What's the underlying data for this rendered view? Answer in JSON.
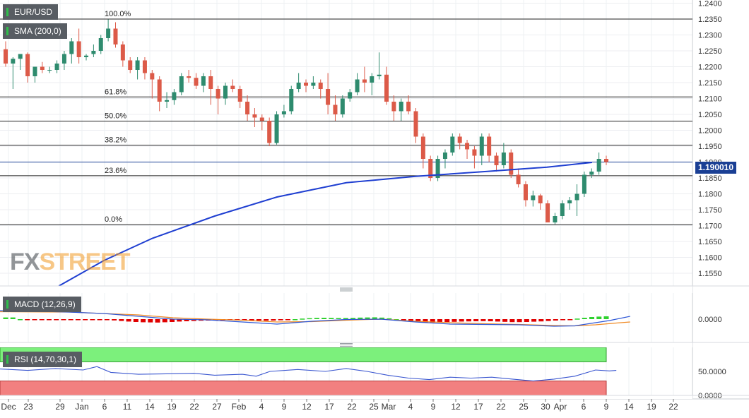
{
  "header": {
    "symbol": "EUR/USD",
    "indicator": "SMA (200,0)",
    "macd_label": "MACD (12,26,9)",
    "rsi_label": "RSI (14,70,30,1)",
    "price_badge": "1.190010"
  },
  "logo": {
    "fx": "FX",
    "street": "STREET"
  },
  "colors": {
    "up": "#2e8b6e",
    "down": "#dc5a48",
    "sma": "#1f3fd1",
    "tag": "#1a3f94",
    "macd": "#2f58d6",
    "signal": "#f08a24",
    "hist_up": "#2ed12e",
    "hist_down": "#e00000",
    "rsi_over": "#7cf07c",
    "rsi_under": "#f28080",
    "rsi_line": "#3b57d0"
  },
  "chart_data": {
    "type": "candlestick",
    "symbol": "EUR/USD",
    "ylim": [
      1.151,
      1.241
    ],
    "yticks": [
      "1.2400",
      "1.2350",
      "1.2300",
      "1.2250",
      "1.2200",
      "1.2150",
      "1.2100",
      "1.2050",
      "1.2000",
      "1.1950",
      "1.1900",
      "1.1850",
      "1.1800",
      "1.1750",
      "1.1700",
      "1.1650",
      "1.1600",
      "1.1550"
    ],
    "xticks": [
      "Dec",
      "23",
      "29",
      "Jan",
      "6",
      "11",
      "14",
      "19",
      "22",
      "27",
      "Feb",
      "4",
      "9",
      "12",
      "17",
      "22",
      "25",
      "Mar",
      "4",
      "9",
      "12",
      "17",
      "22",
      "25",
      "30",
      "Apr",
      "6",
      "9",
      "14",
      "19",
      "22"
    ],
    "last_price": "1.190010",
    "fibonacci": [
      {
        "label": "100.0%",
        "value": 1.235
      },
      {
        "label": "61.8%",
        "value": 1.2105
      },
      {
        "label": "50.0%",
        "value": 1.2029
      },
      {
        "label": "38.2%",
        "value": 1.1953
      },
      {
        "label": "23.6%",
        "value": 1.1857
      },
      {
        "label": "0.0%",
        "value": 1.1703
      }
    ],
    "candles": [
      [
        1.2255,
        1.228,
        1.22,
        1.221
      ],
      [
        1.221,
        1.223,
        1.213,
        1.2225
      ],
      [
        1.2225,
        1.224,
        1.219,
        1.224
      ],
      [
        1.224,
        1.2245,
        1.215,
        1.217
      ],
      [
        1.217,
        1.22,
        1.215,
        1.22
      ],
      [
        1.22,
        1.2215,
        1.218,
        1.219
      ],
      [
        1.219,
        1.22,
        1.218,
        1.219
      ],
      [
        1.219,
        1.222,
        1.218,
        1.221
      ],
      [
        1.221,
        1.225,
        1.219,
        1.224
      ],
      [
        1.224,
        1.229,
        1.221,
        1.228
      ],
      [
        1.228,
        1.232,
        1.221,
        1.223
      ],
      [
        1.223,
        1.224,
        1.222,
        1.2235
      ],
      [
        1.224,
        1.227,
        1.223,
        1.225
      ],
      [
        1.225,
        1.23,
        1.224,
        1.229
      ],
      [
        1.229,
        1.2349,
        1.228,
        1.232
      ],
      [
        1.232,
        1.234,
        1.226,
        1.227
      ],
      [
        1.227,
        1.228,
        1.22,
        1.222
      ],
      [
        1.222,
        1.223,
        1.218,
        1.219
      ],
      [
        1.219,
        1.223,
        1.216,
        1.222
      ],
      [
        1.222,
        1.223,
        1.216,
        1.218
      ],
      [
        1.218,
        1.219,
        1.21,
        1.216
      ],
      [
        1.216,
        1.217,
        1.206,
        1.209
      ],
      [
        1.209,
        1.212,
        1.207,
        1.2095
      ],
      [
        1.2095,
        1.213,
        1.208,
        1.212
      ],
      [
        1.212,
        1.218,
        1.211,
        1.217
      ],
      [
        1.217,
        1.219,
        1.215,
        1.2165
      ],
      [
        1.2165,
        1.218,
        1.213,
        1.214
      ],
      [
        1.214,
        1.218,
        1.212,
        1.217
      ],
      [
        1.217,
        1.219,
        1.208,
        1.213
      ],
      [
        1.213,
        1.214,
        1.205,
        1.21
      ],
      [
        1.21,
        1.215,
        1.208,
        1.214
      ],
      [
        1.214,
        1.216,
        1.212,
        1.213
      ],
      [
        1.213,
        1.214,
        1.207,
        1.209
      ],
      [
        1.209,
        1.211,
        1.203,
        1.205
      ],
      [
        1.205,
        1.207,
        1.201,
        1.204
      ],
      [
        1.204,
        1.205,
        1.2,
        1.203
      ],
      [
        1.203,
        1.204,
        1.195,
        1.196
      ],
      [
        1.196,
        1.206,
        1.1955,
        1.205
      ],
      [
        1.205,
        1.208,
        1.204,
        1.206
      ],
      [
        1.206,
        1.214,
        1.205,
        1.213
      ],
      [
        1.213,
        1.218,
        1.212,
        1.215
      ],
      [
        1.215,
        1.216,
        1.212,
        1.214
      ],
      [
        1.214,
        1.217,
        1.213,
        1.215
      ],
      [
        1.215,
        1.216,
        1.21,
        1.213
      ],
      [
        1.213,
        1.218,
        1.205,
        1.208
      ],
      [
        1.208,
        1.211,
        1.203,
        1.205
      ],
      [
        1.205,
        1.211,
        1.204,
        1.21
      ],
      [
        1.21,
        1.213,
        1.209,
        1.212
      ],
      [
        1.212,
        1.218,
        1.211,
        1.216
      ],
      [
        1.216,
        1.22,
        1.212,
        1.215
      ],
      [
        1.215,
        1.218,
        1.211,
        1.217
      ],
      [
        1.217,
        1.2245,
        1.216,
        1.2175
      ],
      [
        1.2175,
        1.22,
        1.208,
        1.209
      ],
      [
        1.209,
        1.211,
        1.203,
        1.206
      ],
      [
        1.206,
        1.21,
        1.203,
        1.209
      ],
      [
        1.209,
        1.211,
        1.205,
        1.206
      ],
      [
        1.206,
        1.207,
        1.196,
        1.198
      ],
      [
        1.198,
        1.199,
        1.188,
        1.191
      ],
      [
        1.191,
        1.192,
        1.184,
        1.185
      ],
      [
        1.185,
        1.192,
        1.184,
        1.191
      ],
      [
        1.191,
        1.194,
        1.188,
        1.193
      ],
      [
        1.193,
        1.199,
        1.192,
        1.198
      ],
      [
        1.198,
        1.199,
        1.194,
        1.196
      ],
      [
        1.196,
        1.197,
        1.191,
        1.194
      ],
      [
        1.194,
        1.195,
        1.188,
        1.192
      ],
      [
        1.192,
        1.199,
        1.189,
        1.198
      ],
      [
        1.198,
        1.199,
        1.19,
        1.192
      ],
      [
        1.192,
        1.193,
        1.187,
        1.189
      ],
      [
        1.189,
        1.196,
        1.188,
        1.193
      ],
      [
        1.193,
        1.194,
        1.185,
        1.186
      ],
      [
        1.186,
        1.188,
        1.182,
        1.183
      ],
      [
        1.183,
        1.184,
        1.176,
        1.178
      ],
      [
        1.178,
        1.181,
        1.176,
        1.1795
      ],
      [
        1.1795,
        1.18,
        1.175,
        1.177
      ],
      [
        1.177,
        1.178,
        1.171,
        1.171
      ],
      [
        1.171,
        1.174,
        1.1704,
        1.173
      ],
      [
        1.173,
        1.178,
        1.172,
        1.177
      ],
      [
        1.177,
        1.179,
        1.175,
        1.178
      ],
      [
        1.178,
        1.183,
        1.173,
        1.18
      ],
      [
        1.18,
        1.187,
        1.179,
        1.186
      ],
      [
        1.186,
        1.188,
        1.185,
        1.187
      ],
      [
        1.187,
        1.193,
        1.186,
        1.191
      ],
      [
        1.191,
        1.192,
        1.189,
        1.19
      ]
    ],
    "sma_200": [
      [
        0.085,
        1.151
      ],
      [
        0.15,
        1.159
      ],
      [
        0.22,
        1.166
      ],
      [
        0.31,
        1.173
      ],
      [
        0.4,
        1.179
      ],
      [
        0.5,
        1.1835
      ],
      [
        0.6,
        1.1855
      ],
      [
        0.7,
        1.187
      ],
      [
        0.79,
        1.1884
      ],
      [
        0.855,
        1.1899
      ]
    ],
    "macd": {
      "zero_label": "0.0000",
      "hist": [
        0.0012,
        0.0012,
        0.0,
        -0.0003,
        -0.0004,
        -0.0004,
        -0.0004,
        -0.0004,
        -0.0004,
        -0.0004,
        -0.0003,
        -0.0002,
        -0.0003,
        -0.0003,
        -0.0005,
        -0.0009,
        -0.0013,
        -0.0017,
        -0.002,
        -0.0022,
        -0.0023,
        -0.0024,
        -0.0022,
        -0.002,
        -0.0017,
        -0.0015,
        -0.0013,
        -0.0011,
        -0.001,
        -0.0009,
        -0.0008,
        -0.0007,
        -0.0007,
        -0.0007,
        -0.0009,
        -0.001,
        -0.0011,
        -0.001,
        -0.0008,
        -0.0005,
        0.0,
        0.0004,
        0.0007,
        0.0009,
        0.001,
        0.0009,
        0.0008,
        0.0008,
        0.0009,
        0.0011,
        0.0012,
        0.0013,
        0.0011,
        0.0006,
        0.0,
        -0.0006,
        -0.0012,
        -0.0018,
        -0.0022,
        -0.0024,
        -0.0023,
        -0.0021,
        -0.0019,
        -0.0017,
        -0.0016,
        -0.0015,
        -0.0014,
        -0.0015,
        -0.0017,
        -0.0019,
        -0.0021,
        -0.0021,
        -0.002,
        -0.0018,
        -0.0016,
        -0.0013,
        -0.001,
        -0.0006,
        -0.0002,
        0.0004,
        0.001,
        0.0015,
        0.0018,
        0.002
      ],
      "macd_line": [
        [
          0.0,
          0.012
        ],
        [
          0.04,
          0.0115
        ],
        [
          0.1,
          0.01
        ],
        [
          0.15,
          0.008
        ],
        [
          0.2,
          0.004
        ],
        [
          0.25,
          0.0
        ],
        [
          0.3,
          -0.001
        ],
        [
          0.35,
          -0.004
        ],
        [
          0.4,
          -0.007
        ],
        [
          0.45,
          -0.003
        ],
        [
          0.5,
          -0.0005
        ],
        [
          0.55,
          0.0
        ],
        [
          0.6,
          -0.004
        ],
        [
          0.65,
          -0.007
        ],
        [
          0.7,
          -0.0075
        ],
        [
          0.75,
          -0.008
        ],
        [
          0.8,
          -0.01
        ],
        [
          0.83,
          -0.0095
        ],
        [
          0.86,
          -0.005
        ],
        [
          0.88,
          -0.002
        ],
        [
          0.91,
          0.004
        ]
      ],
      "signal_line": [
        [
          0.0,
          0.0105
        ],
        [
          0.1,
          0.01
        ],
        [
          0.2,
          0.006
        ],
        [
          0.25,
          0.002
        ],
        [
          0.3,
          0.0
        ],
        [
          0.35,
          -0.0015
        ],
        [
          0.4,
          -0.004
        ],
        [
          0.45,
          -0.0035
        ],
        [
          0.5,
          -0.0015
        ],
        [
          0.55,
          0.0
        ],
        [
          0.6,
          -0.003
        ],
        [
          0.65,
          -0.005
        ],
        [
          0.7,
          -0.0065
        ],
        [
          0.75,
          -0.0075
        ],
        [
          0.8,
          -0.009
        ],
        [
          0.83,
          -0.0095
        ],
        [
          0.86,
          -0.008
        ],
        [
          0.89,
          -0.0055
        ],
        [
          0.91,
          -0.004
        ]
      ]
    },
    "rsi": {
      "label": "RSI (14,70,30,1)",
      "ylim": [
        0,
        100
      ],
      "yticks": [
        "50.0000",
        "0.0000"
      ],
      "overbought": 70,
      "oversold": 30,
      "values": [
        [
          0.0,
          55
        ],
        [
          0.04,
          52
        ],
        [
          0.08,
          56
        ],
        [
          0.12,
          53
        ],
        [
          0.14,
          60
        ],
        [
          0.16,
          48
        ],
        [
          0.2,
          44
        ],
        [
          0.24,
          45
        ],
        [
          0.28,
          46
        ],
        [
          0.31,
          42
        ],
        [
          0.35,
          44
        ],
        [
          0.37,
          40
        ],
        [
          0.39,
          50
        ],
        [
          0.43,
          54
        ],
        [
          0.47,
          50
        ],
        [
          0.5,
          56
        ],
        [
          0.53,
          50
        ],
        [
          0.56,
          42
        ],
        [
          0.59,
          36
        ],
        [
          0.62,
          33
        ],
        [
          0.65,
          38
        ],
        [
          0.68,
          36
        ],
        [
          0.71,
          38
        ],
        [
          0.74,
          34
        ],
        [
          0.77,
          30
        ],
        [
          0.8,
          34
        ],
        [
          0.83,
          40
        ],
        [
          0.86,
          53
        ],
        [
          0.88,
          51
        ],
        [
          0.89,
          52
        ]
      ]
    }
  }
}
